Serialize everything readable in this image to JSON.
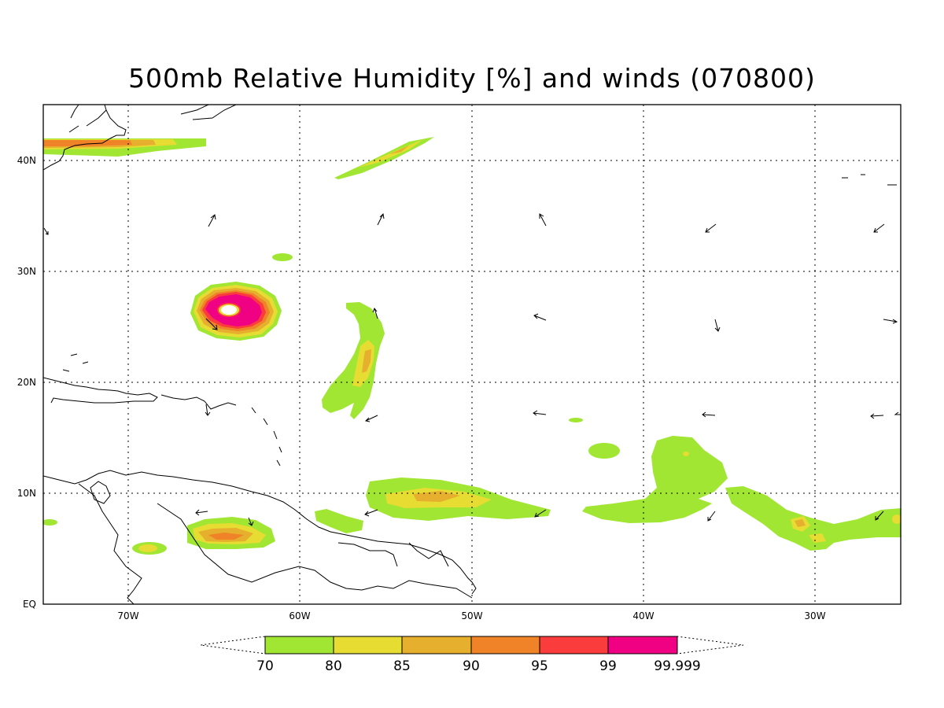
{
  "title": "500mb Relative Humidity [%] and winds (070800)",
  "axes": {
    "x_ticks": [
      "70W",
      "60W",
      "50W",
      "40W",
      "30W"
    ],
    "y_ticks": [
      "EQ",
      "10N",
      "20N",
      "30N",
      "40N"
    ],
    "lon_range": [
      -75,
      -25
    ],
    "lat_range": [
      0,
      45
    ]
  },
  "colorbar": {
    "labels": [
      "70",
      "80",
      "85",
      "90",
      "95",
      "99",
      "99.999"
    ],
    "colors": [
      "#a0e632",
      "#e6dc32",
      "#e6af2d",
      "#f08228",
      "#fa3c3c",
      "#f00082"
    ]
  },
  "colors": {
    "rh70": "#a0e632",
    "rh80": "#e6dc32",
    "rh85": "#e6af2d",
    "rh90": "#f08228",
    "rh95": "#fa3c3c",
    "rh99": "#f00082"
  }
}
